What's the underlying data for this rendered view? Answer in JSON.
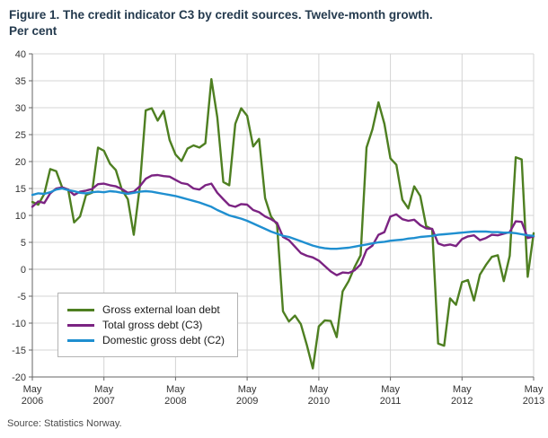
{
  "header": {
    "title_line1": "Figure 1. The credit indicator C3 by credit sources. Twelve-month growth.",
    "title_line2": "Per cent"
  },
  "source": {
    "text": "Source: Statistics Norway."
  },
  "chart_data": {
    "type": "line",
    "title": "Figure 1. The credit indicator C3 by credit sources. Twelve-month growth. Per cent",
    "xlabel": "",
    "ylabel": "Per cent",
    "ylim": [
      -20,
      40
    ],
    "y_tick_step": 5,
    "grid": true,
    "legend_position": "inside-bottom-left",
    "x_unit": "monthly, May 2006 to May 2013",
    "x_ticks": [
      {
        "index": 0,
        "line1": "May",
        "line2": "2006"
      },
      {
        "index": 12,
        "line1": "May",
        "line2": "2007"
      },
      {
        "index": 24,
        "line1": "May",
        "line2": "2008"
      },
      {
        "index": 36,
        "line1": "May",
        "line2": "2009"
      },
      {
        "index": 48,
        "line1": "May",
        "line2": "2010"
      },
      {
        "index": 60,
        "line1": "May",
        "line2": "2011"
      },
      {
        "index": 72,
        "line1": "May",
        "line2": "2012"
      },
      {
        "index": 84,
        "line1": "May",
        "line2": "2013"
      }
    ],
    "series": [
      {
        "name": "Gross external loan debt",
        "color": "#4e7f21",
        "values": [
          12.5,
          12.0,
          14.0,
          18.6,
          18.2,
          15.2,
          14.8,
          8.7,
          9.8,
          13.8,
          14.2,
          22.6,
          22.0,
          19.6,
          18.4,
          14.8,
          13.0,
          6.4,
          15.3,
          29.5,
          29.9,
          27.6,
          29.4,
          24.0,
          21.3,
          20.1,
          22.4,
          23.0,
          22.6,
          23.4,
          35.3,
          28.2,
          16.2,
          15.6,
          27.0,
          29.9,
          28.5,
          22.8,
          24.2,
          13.2,
          9.8,
          8.3,
          -7.8,
          -9.7,
          -8.6,
          -10.2,
          -14.1,
          -18.4,
          -10.6,
          -9.5,
          -9.6,
          -12.6,
          -4.1,
          -2.2,
          0.4,
          2.6,
          22.6,
          26.0,
          31.0,
          27.0,
          20.6,
          19.4,
          12.9,
          11.3,
          15.4,
          13.6,
          8.0,
          7.4,
          -13.8,
          -14.2,
          -5.4,
          -6.6,
          -2.4,
          -2.0,
          -5.8,
          -1.0,
          0.8,
          2.3,
          2.6,
          -2.2,
          2.5,
          20.8,
          20.4,
          -1.4,
          6.7
        ]
      },
      {
        "name": "Total gross debt (C3)",
        "color": "#7b2382",
        "values": [
          11.6,
          12.6,
          12.3,
          14.1,
          15.0,
          15.2,
          14.8,
          13.8,
          14.4,
          14.6,
          14.9,
          15.8,
          15.9,
          15.6,
          15.4,
          14.9,
          14.2,
          14.4,
          15.4,
          16.8,
          17.4,
          17.5,
          17.3,
          17.2,
          16.6,
          16.0,
          15.8,
          15.0,
          14.8,
          15.6,
          15.9,
          14.2,
          13.0,
          11.9,
          11.6,
          12.1,
          12.0,
          11.0,
          10.6,
          9.8,
          9.3,
          8.6,
          6.0,
          5.4,
          4.2,
          3.0,
          2.5,
          2.2,
          1.6,
          0.6,
          -0.4,
          -1.1,
          -0.6,
          -0.7,
          -0.2,
          0.9,
          3.6,
          4.4,
          6.4,
          6.9,
          9.8,
          10.2,
          9.3,
          9.0,
          9.2,
          8.2,
          7.6,
          7.5,
          4.8,
          4.4,
          4.6,
          4.3,
          5.6,
          6.1,
          6.3,
          5.4,
          5.8,
          6.4,
          6.3,
          6.6,
          6.9,
          8.9,
          8.8,
          5.8,
          6.1
        ]
      },
      {
        "name": "Domestic gross debt (C2)",
        "color": "#1f8fd0",
        "values": [
          13.8,
          14.1,
          14.0,
          14.3,
          14.8,
          15.0,
          14.7,
          14.5,
          14.2,
          14.1,
          14.3,
          14.4,
          14.3,
          14.5,
          14.4,
          14.2,
          14.0,
          14.2,
          14.4,
          14.5,
          14.4,
          14.2,
          14.0,
          13.8,
          13.6,
          13.3,
          13.0,
          12.7,
          12.4,
          12.0,
          11.6,
          11.0,
          10.5,
          10.0,
          9.7,
          9.4,
          9.0,
          8.5,
          8.0,
          7.5,
          7.0,
          6.6,
          6.2,
          6.0,
          5.6,
          5.2,
          4.8,
          4.4,
          4.1,
          3.9,
          3.8,
          3.8,
          3.9,
          4.0,
          4.2,
          4.4,
          4.6,
          4.8,
          5.0,
          5.1,
          5.3,
          5.4,
          5.5,
          5.7,
          5.8,
          6.0,
          6.1,
          6.2,
          6.4,
          6.5,
          6.6,
          6.7,
          6.8,
          6.9,
          7.0,
          7.0,
          7.0,
          6.9,
          6.9,
          6.8,
          6.8,
          6.7,
          6.5,
          6.3,
          6.2
        ]
      }
    ]
  }
}
